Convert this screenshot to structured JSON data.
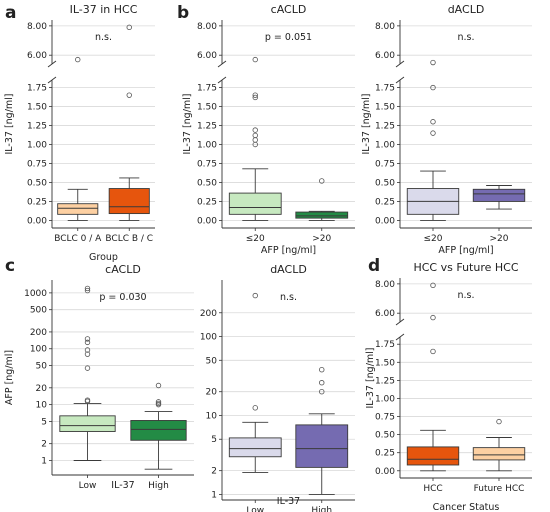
{
  "panel_letters": [
    "a",
    "b",
    "c",
    "d"
  ],
  "chart_data": [
    {
      "panel": "a",
      "type": "box",
      "title": "IL-37 in HCC",
      "xlabel": "Group",
      "ylabel": "IL-37 [ng/ml]",
      "annotation": "n.s.",
      "y_axis": {
        "broken": true,
        "lower_range": [
          -0.1,
          1.85
        ],
        "lower_ticks": [
          "0.00",
          "0.25",
          "0.50",
          "0.75",
          "1.00",
          "1.25",
          "1.50",
          "1.75"
        ],
        "upper_range": [
          5.4,
          8.4
        ],
        "upper_ticks": [
          "6.00",
          "8.00"
        ]
      },
      "categories": [
        "BCLC 0 / A",
        "BCLC B / C"
      ],
      "boxes": [
        {
          "category": "BCLC 0 / A",
          "color": "#fdd0a2",
          "whisker_low": 0.0,
          "q1": 0.08,
          "median": 0.16,
          "q3": 0.22,
          "whisker_high": 0.41,
          "outliers": [
            5.7
          ]
        },
        {
          "category": "BCLC B / C",
          "color": "#e6550d",
          "whisker_low": 0.0,
          "q1": 0.09,
          "median": 0.18,
          "q3": 0.42,
          "whisker_high": 0.56,
          "outliers": [
            1.65,
            7.9
          ]
        }
      ]
    },
    {
      "panel": "b",
      "type": "box",
      "title": "cACLD",
      "xlabel": "AFP [ng/ml]",
      "ylabel": "IL-37 [ng/ml]",
      "annotation": "p = 0.051",
      "y_axis": {
        "broken": true,
        "lower_range": [
          -0.1,
          1.85
        ],
        "lower_ticks": [
          "0.00",
          "0.25",
          "0.50",
          "0.75",
          "1.00",
          "1.25",
          "1.50",
          "1.75"
        ],
        "upper_range": [
          5.4,
          8.4
        ],
        "upper_ticks": [
          "6.00",
          "8.00"
        ]
      },
      "categories": [
        "≤20",
        ">20"
      ],
      "boxes": [
        {
          "category": "≤20",
          "color": "#c7e9c0",
          "whisker_low": 0.0,
          "q1": 0.08,
          "median": 0.17,
          "q3": 0.36,
          "whisker_high": 0.68,
          "outliers": [
            1.0,
            1.06,
            1.12,
            1.19,
            1.62,
            1.65,
            5.7
          ]
        },
        {
          "category": ">20",
          "color": "#238b45",
          "whisker_low": 0.0,
          "q1": 0.03,
          "median": 0.06,
          "q3": 0.11,
          "whisker_high": 0.12,
          "outliers": [
            0.52
          ]
        }
      ]
    },
    {
      "panel": "b",
      "type": "box",
      "title": "dACLD",
      "xlabel": "AFP [ng/ml]",
      "ylabel": "IL-37 [ng/ml]",
      "annotation": "n.s.",
      "y_axis": {
        "broken": true,
        "lower_range": [
          -0.1,
          1.85
        ],
        "lower_ticks": [
          "0.00",
          "0.25",
          "0.50",
          "0.75",
          "1.00",
          "1.25",
          "1.50",
          "1.75"
        ],
        "upper_range": [
          5.4,
          8.4
        ],
        "upper_ticks": [
          "6.00",
          "8.00"
        ]
      },
      "categories": [
        "≤20",
        ">20"
      ],
      "boxes": [
        {
          "category": "≤20",
          "color": "#dadaeb",
          "whisker_low": 0.0,
          "q1": 0.08,
          "median": 0.25,
          "q3": 0.42,
          "whisker_high": 0.65,
          "outliers": [
            1.15,
            1.3,
            1.75,
            5.5
          ]
        },
        {
          "category": ">20",
          "color": "#756bb1",
          "whisker_low": 0.15,
          "q1": 0.25,
          "median": 0.35,
          "q3": 0.41,
          "whisker_high": 0.46,
          "outliers": []
        }
      ]
    },
    {
      "panel": "c",
      "type": "box",
      "title": "cACLD",
      "xlabel": "IL-37",
      "ylabel": "AFP [ng/ml]",
      "annotation": "p = 0.030",
      "y_axis": {
        "scale": "log",
        "range": [
          0.55,
          1700
        ],
        "ticks": [
          "1",
          "2",
          "5",
          "10",
          "20",
          "50",
          "100",
          "200",
          "500",
          "1000"
        ]
      },
      "categories": [
        "Low",
        "High"
      ],
      "boxes": [
        {
          "category": "Low",
          "color": "#c7e9c0",
          "whisker_low": 1.0,
          "q1": 3.3,
          "median": 4.2,
          "q3": 6.3,
          "whisker_high": 10.5,
          "outliers": [
            11.5,
            12.0,
            45,
            80,
            95,
            130,
            150,
            1100,
            1200
          ]
        },
        {
          "category": "High",
          "color": "#238b45",
          "whisker_low": 0.7,
          "q1": 2.3,
          "median": 3.6,
          "q3": 5.2,
          "whisker_high": 7.5,
          "outliers": [
            10.0,
            10.5,
            11.2,
            22
          ]
        }
      ]
    },
    {
      "panel": "c",
      "type": "box",
      "title": "dACLD",
      "xlabel": "IL-37",
      "ylabel": "",
      "annotation": "n.s.",
      "y_axis": {
        "scale": "log",
        "range": [
          0.85,
          520
        ],
        "ticks": [
          "1",
          "2",
          "5",
          "10",
          "20",
          "50",
          "100",
          "200"
        ]
      },
      "categories": [
        "Low",
        "High"
      ],
      "boxes": [
        {
          "category": "Low",
          "color": "#dadaeb",
          "whisker_low": 1.9,
          "q1": 3.0,
          "median": 3.8,
          "q3": 5.2,
          "whisker_high": 8.2,
          "outliers": [
            12.5,
            330
          ]
        },
        {
          "category": "High",
          "color": "#756bb1",
          "whisker_low": 1.0,
          "q1": 2.2,
          "median": 3.8,
          "q3": 7.6,
          "whisker_high": 10.5,
          "outliers": [
            20,
            26,
            38
          ]
        }
      ]
    },
    {
      "panel": "d",
      "type": "box",
      "title": "HCC vs Future HCC",
      "xlabel": "Cancer Status",
      "ylabel": "IL-37 [ng/ml]",
      "annotation": "n.s.",
      "y_axis": {
        "broken": true,
        "lower_range": [
          -0.1,
          1.85
        ],
        "lower_ticks": [
          "0.00",
          "0.25",
          "0.50",
          "0.75",
          "1.00",
          "1.25",
          "1.50",
          "1.75"
        ],
        "upper_range": [
          5.4,
          8.4
        ],
        "upper_ticks": [
          "6.00",
          "8.00"
        ]
      },
      "categories": [
        "HCC",
        "Future HCC"
      ],
      "boxes": [
        {
          "category": "HCC",
          "color": "#e6550d",
          "whisker_low": 0.0,
          "q1": 0.08,
          "median": 0.16,
          "q3": 0.33,
          "whisker_high": 0.56,
          "outliers": [
            1.65,
            5.7,
            7.9
          ]
        },
        {
          "category": "Future HCC",
          "color": "#fdd0a2",
          "whisker_low": 0.0,
          "q1": 0.15,
          "median": 0.22,
          "q3": 0.32,
          "whisker_high": 0.46,
          "outliers": [
            0.68
          ]
        }
      ]
    }
  ]
}
